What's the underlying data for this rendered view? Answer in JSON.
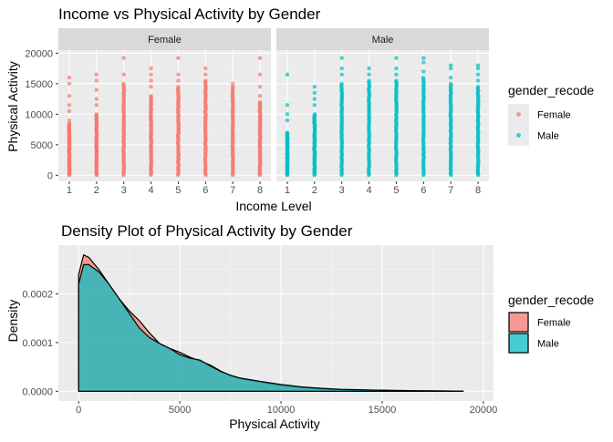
{
  "chart_data": [
    {
      "type": "scatter",
      "title": "Income vs Physical Activity by Gender",
      "xlabel": "Income Level",
      "ylabel": "Physical Activity",
      "xlim": [
        0.6,
        8.4
      ],
      "ylim": [
        -1000,
        20500
      ],
      "x_ticks": [
        1,
        2,
        3,
        4,
        5,
        6,
        7,
        8
      ],
      "y_ticks": [
        0,
        5000,
        10000,
        15000,
        20000
      ],
      "grid": true,
      "legend": {
        "title": "gender_recode",
        "position": "right"
      },
      "facets": [
        {
          "name": "Female",
          "color": "#F8766D",
          "points": [
            {
              "x": 1,
              "dense_max": 8500,
              "outliers": [
                9000,
                10500,
                11500,
                13000,
                15000,
                16000
              ]
            },
            {
              "x": 2,
              "dense_max": 10000,
              "outliers": [
                11500,
                12500,
                14000,
                15500,
                16500
              ]
            },
            {
              "x": 3,
              "dense_max": 15000,
              "outliers": [
                16500,
                19200
              ]
            },
            {
              "x": 4,
              "dense_max": 13000,
              "outliers": [
                14500,
                15500,
                16500,
                17500
              ]
            },
            {
              "x": 5,
              "dense_max": 14500,
              "outliers": [
                15500,
                16500,
                19200
              ]
            },
            {
              "x": 6,
              "dense_max": 15500,
              "outliers": [
                16500,
                17500
              ]
            },
            {
              "x": 7,
              "dense_max": 14500,
              "outliers": [
                15000
              ]
            },
            {
              "x": 8,
              "dense_max": 12000,
              "outliers": [
                13000,
                14500,
                16500,
                19200
              ]
            }
          ]
        },
        {
          "name": "Male",
          "color": "#00BFC4",
          "points": [
            {
              "x": 1,
              "dense_max": 7000,
              "outliers": [
                9000,
                10000,
                11500,
                16500
              ]
            },
            {
              "x": 2,
              "dense_max": 10000,
              "outliers": [
                11500,
                12500,
                13500,
                14500
              ]
            },
            {
              "x": 3,
              "dense_max": 15000,
              "outliers": [
                16500,
                17500,
                19200
              ]
            },
            {
              "x": 4,
              "dense_max": 15500,
              "outliers": [
                16500,
                17500
              ]
            },
            {
              "x": 5,
              "dense_max": 15500,
              "outliers": [
                16500,
                17500,
                19200
              ]
            },
            {
              "x": 6,
              "dense_max": 16000,
              "outliers": [
                17000,
                18500,
                19200
              ]
            },
            {
              "x": 7,
              "dense_max": 15000,
              "outliers": [
                16000,
                17500,
                18000
              ]
            },
            {
              "x": 8,
              "dense_max": 14500,
              "outliers": [
                15500,
                16500,
                17500,
                18000
              ]
            }
          ]
        }
      ]
    },
    {
      "type": "area",
      "title": "Density Plot of Physical Activity by Gender",
      "xlabel": "Physical Activity",
      "ylabel": "Density",
      "xlim": [
        -1000,
        20500
      ],
      "ylim": [
        -2e-05,
        0.0003
      ],
      "x_ticks": [
        0,
        5000,
        10000,
        15000,
        20000
      ],
      "y_ticks": [
        0.0,
        0.0001,
        0.0002
      ],
      "y_tick_labels": [
        "0.0000",
        "0.0001",
        "0.0002"
      ],
      "grid": true,
      "legend": {
        "title": "gender_recode",
        "position": "right"
      },
      "series": [
        {
          "name": "Female",
          "color": "#F8766D",
          "x": [
            0,
            250,
            500,
            1000,
            1500,
            2000,
            2500,
            3000,
            3500,
            4000,
            4500,
            5000,
            5500,
            6000,
            6500,
            7000,
            7500,
            8000,
            9000,
            10000,
            11000,
            12000,
            13000,
            14000,
            15000,
            16000,
            17000,
            18000,
            19000
          ],
          "y": [
            0.00024,
            0.00028,
            0.000275,
            0.00025,
            0.00022,
            0.00019,
            0.000165,
            0.000145,
            0.00012,
            9.8e-05,
            8.8e-05,
            8e-05,
            7e-05,
            6.2e-05,
            5.4e-05,
            4.2e-05,
            3.2e-05,
            2.6e-05,
            1.9e-05,
            1.2e-05,
            8e-06,
            5e-06,
            3e-06,
            2.5e-06,
            2e-06,
            1e-06,
            8e-07,
            5e-07,
            3e-07
          ]
        },
        {
          "name": "Male",
          "color": "#00BFC4",
          "x": [
            0,
            250,
            500,
            1000,
            1500,
            2000,
            2500,
            3000,
            3500,
            4000,
            4500,
            5000,
            5500,
            6000,
            6500,
            7000,
            7500,
            8000,
            9000,
            10000,
            11000,
            12000,
            13000,
            14000,
            15000,
            16000,
            17000,
            18000,
            19000
          ],
          "y": [
            0.00022,
            0.00026,
            0.00026,
            0.000245,
            0.00022,
            0.00019,
            0.00016,
            0.00013,
            0.00011,
            9.8e-05,
            8.8e-05,
            7.5e-05,
            6.8e-05,
            6.4e-05,
            5.2e-05,
            4.1e-05,
            3.3e-05,
            2.7e-05,
            2e-05,
            1.4e-05,
            9e-06,
            6e-06,
            4e-06,
            3e-06,
            2e-06,
            1.5e-06,
            1e-06,
            6e-07,
            3e-07
          ]
        }
      ]
    }
  ]
}
